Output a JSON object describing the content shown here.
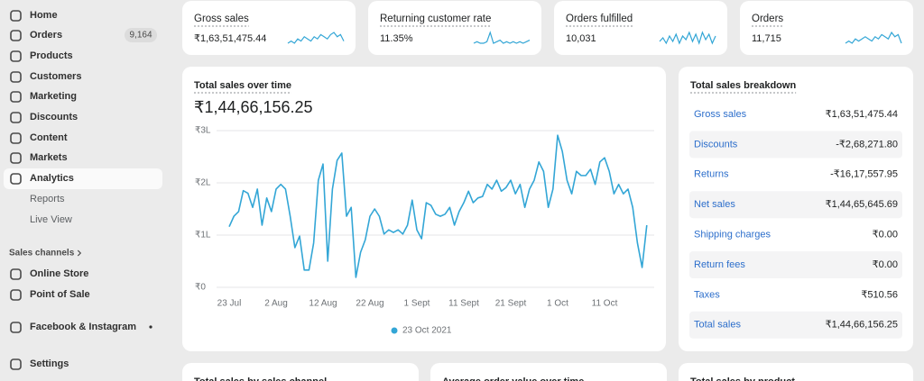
{
  "sidebar": {
    "items": [
      {
        "label": "Home"
      },
      {
        "label": "Orders",
        "badge": "9,164"
      },
      {
        "label": "Products"
      },
      {
        "label": "Customers"
      },
      {
        "label": "Marketing"
      },
      {
        "label": "Discounts"
      },
      {
        "label": "Content"
      },
      {
        "label": "Markets"
      },
      {
        "label": "Analytics"
      },
      {
        "label": "Reports"
      },
      {
        "label": "Live View"
      }
    ],
    "channels_heading": "Sales channels",
    "channels": [
      {
        "label": "Online Store"
      },
      {
        "label": "Point of Sale"
      },
      {
        "label": "Facebook & Instagram"
      }
    ],
    "settings": "Settings"
  },
  "kpis": [
    {
      "title": "Gross sales",
      "value": "₹1,63,51,475.44",
      "trend": [
        5,
        6,
        5,
        7,
        6,
        8,
        7,
        6,
        8,
        7,
        9,
        8,
        7,
        9,
        10,
        8,
        9,
        6
      ]
    },
    {
      "title": "Returning customer rate",
      "value": "11.35%",
      "trend": [
        3,
        4,
        3,
        3,
        4,
        10,
        3,
        4,
        5,
        3,
        4,
        3,
        4,
        3,
        4,
        3,
        4,
        5
      ]
    },
    {
      "title": "Orders fulfilled",
      "value": "10,031",
      "trend": [
        5,
        7,
        4,
        8,
        5,
        9,
        4,
        8,
        6,
        10,
        5,
        9,
        4,
        10,
        6,
        9,
        4,
        8
      ]
    },
    {
      "title": "Orders",
      "value": "11,715",
      "trend": [
        5,
        6,
        5,
        7,
        6,
        7,
        8,
        7,
        6,
        8,
        7,
        9,
        8,
        7,
        10,
        8,
        9,
        5
      ]
    }
  ],
  "chart_data": {
    "type": "line",
    "title": "Total sales over time",
    "subtitle": "₹1,44,66,156.25",
    "categories": [
      "23 Jul",
      null,
      null,
      null,
      null,
      null,
      null,
      null,
      null,
      null,
      "2 Aug",
      null,
      null,
      null,
      null,
      null,
      null,
      null,
      null,
      null,
      "12 Aug",
      null,
      null,
      null,
      null,
      null,
      null,
      null,
      null,
      null,
      "22 Aug",
      null,
      null,
      null,
      null,
      null,
      null,
      null,
      null,
      null,
      "1 Sept",
      null,
      null,
      null,
      null,
      null,
      null,
      null,
      null,
      null,
      "11 Sept",
      null,
      null,
      null,
      null,
      null,
      null,
      null,
      null,
      null,
      "21 Sept",
      null,
      null,
      null,
      null,
      null,
      null,
      null,
      null,
      null,
      "1 Oct",
      null,
      null,
      null,
      null,
      null,
      null,
      null,
      null,
      null,
      "11 Oct",
      null,
      null,
      null,
      null,
      null,
      null,
      null,
      null,
      null
    ],
    "series": [
      {
        "name": "23 Oct 2021",
        "color": "#33a6d6",
        "values": [
          116000,
          136000,
          145000,
          185000,
          180000,
          153000,
          188000,
          119000,
          171000,
          145000,
          188000,
          197000,
          188000,
          136000,
          76000,
          98000,
          33000,
          33000,
          85000,
          205000,
          236000,
          50000,
          188000,
          243000,
          257000,
          136000,
          153000,
          19000,
          67000,
          91000,
          136000,
          150000,
          136000,
          102000,
          110000,
          105000,
          110000,
          102000,
          119000,
          167000,
          110000,
          93000,
          162000,
          157000,
          140000,
          136000,
          140000,
          153000,
          119000,
          145000,
          162000,
          184000,
          162000,
          171000,
          174000,
          197000,
          188000,
          205000,
          184000,
          191000,
          205000,
          179000,
          197000,
          153000,
          188000,
          205000,
          240000,
          222000,
          153000,
          188000,
          291000,
          260000,
          205000,
          179000,
          222000,
          214000,
          214000,
          226000,
          197000,
          240000,
          248000,
          222000,
          179000,
          197000,
          179000,
          188000,
          153000,
          85000,
          38000,
          119000
        ]
      }
    ],
    "ylim": [
      0,
      300000
    ],
    "yticks": [
      {
        "value": 0,
        "label": "₹0"
      },
      {
        "value": 100000,
        "label": "₹1L"
      },
      {
        "value": 200000,
        "label": "₹2L"
      },
      {
        "value": 300000,
        "label": "₹3L"
      }
    ],
    "grid": true
  },
  "breakdown": {
    "title": "Total sales breakdown",
    "rows": [
      [
        "Gross sales",
        "₹1,63,51,475.44"
      ],
      [
        "Discounts",
        "-₹2,68,271.80"
      ],
      [
        "Returns",
        "-₹16,17,557.95"
      ],
      [
        "Net sales",
        "₹1,44,65,645.69"
      ],
      [
        "Shipping charges",
        "₹0.00"
      ],
      [
        "Return fees",
        "₹0.00"
      ],
      [
        "Taxes",
        "₹510.56"
      ],
      [
        "Total sales",
        "₹1,44,66,156.25"
      ]
    ]
  },
  "bottom_cards": [
    {
      "title": "Total sales by sales channel"
    },
    {
      "title": "Average order value over time"
    },
    {
      "title": "Total sales by product"
    }
  ]
}
